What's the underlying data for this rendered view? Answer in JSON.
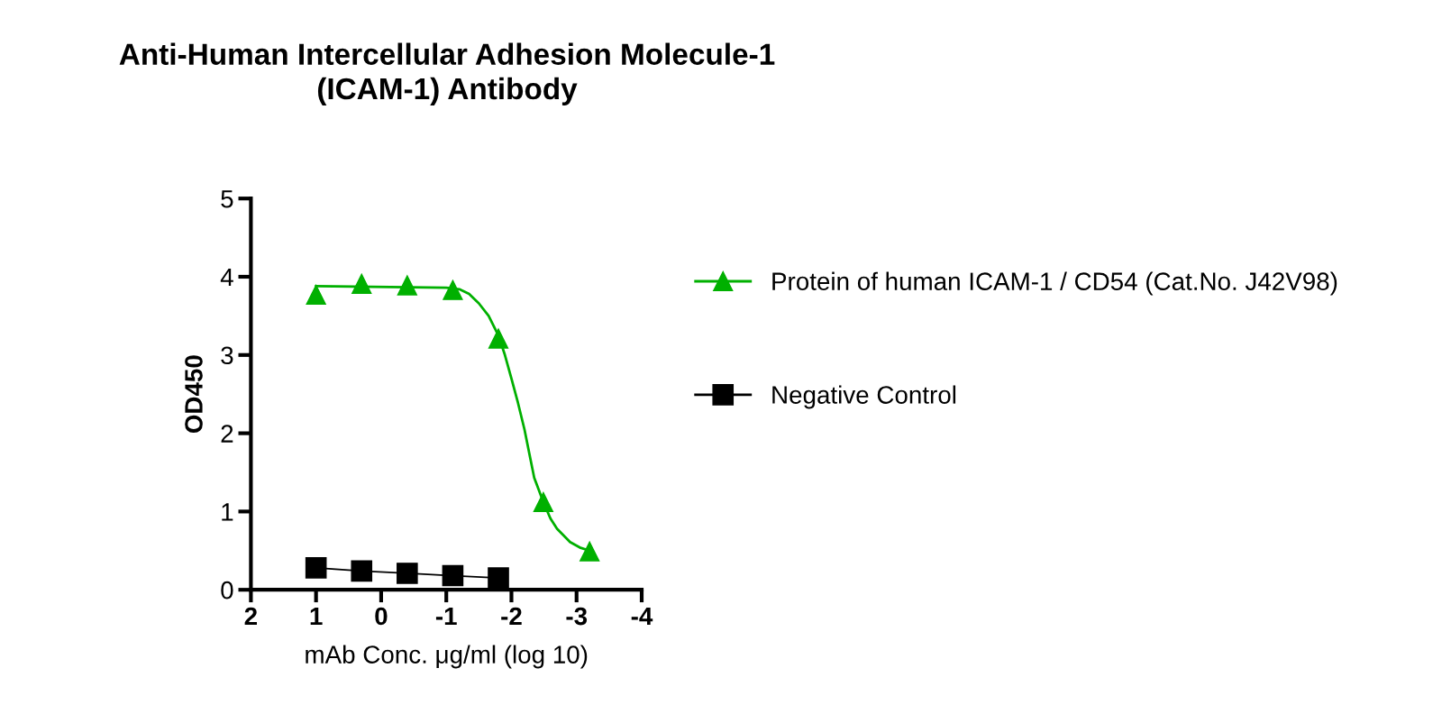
{
  "chart_data": {
    "type": "scatter",
    "title": "Anti-Human Intercellular Adhesion Molecule-1\n(ICAM-1) Antibody",
    "xlabel": "mAb Conc. μg/ml (log 10)",
    "ylabel": "OD450",
    "xlim": [
      2,
      -4
    ],
    "xticks": [
      2,
      1,
      0,
      {
        "value": -1,
        "label": "-1"
      },
      {
        "value": -2,
        "label": "-2"
      },
      {
        "value": -3,
        "label": "-3"
      },
      {
        "value": -4,
        "label": "-4"
      }
    ],
    "ylim": [
      0,
      5
    ],
    "yticks": [
      0,
      1,
      2,
      3,
      4,
      5
    ],
    "grid": false,
    "legend": "right",
    "series": [
      {
        "name": "Protein of human ICAM-1 / CD54 (Cat.No. J42V98)",
        "color": "#00b000",
        "marker": "triangle",
        "x": [
          1.0,
          0.3,
          -0.4,
          -1.1,
          -1.8,
          -2.49,
          -3.2
        ],
        "values": [
          3.77,
          3.91,
          3.89,
          3.83,
          3.21,
          1.12,
          0.49
        ]
      },
      {
        "type": "line",
        "color": "#00b000",
        "marker": "none",
        "line_style": "solid",
        "x": [
          1.0,
          -1.0,
          -1.2,
          -1.35,
          -1.5,
          -1.65,
          -1.8,
          -1.9,
          -2.0,
          -2.1,
          -2.2,
          -2.35,
          -2.5,
          -2.6,
          -2.7,
          -2.9,
          -3.05,
          -3.2
        ],
        "values": [
          3.88,
          3.86,
          3.84,
          3.78,
          3.66,
          3.5,
          3.25,
          3.0,
          2.7,
          2.39,
          2.05,
          1.43,
          1.1,
          0.91,
          0.78,
          0.61,
          0.54,
          0.5
        ]
      },
      {
        "name": "Negative Control",
        "type": "line",
        "color": "#000000",
        "marker": "square",
        "line_style": "solid",
        "x": [
          1.0,
          0.3,
          -0.4,
          -1.1,
          -1.8
        ],
        "values": [
          0.28,
          0.24,
          0.21,
          0.18,
          0.15
        ]
      }
    ]
  }
}
